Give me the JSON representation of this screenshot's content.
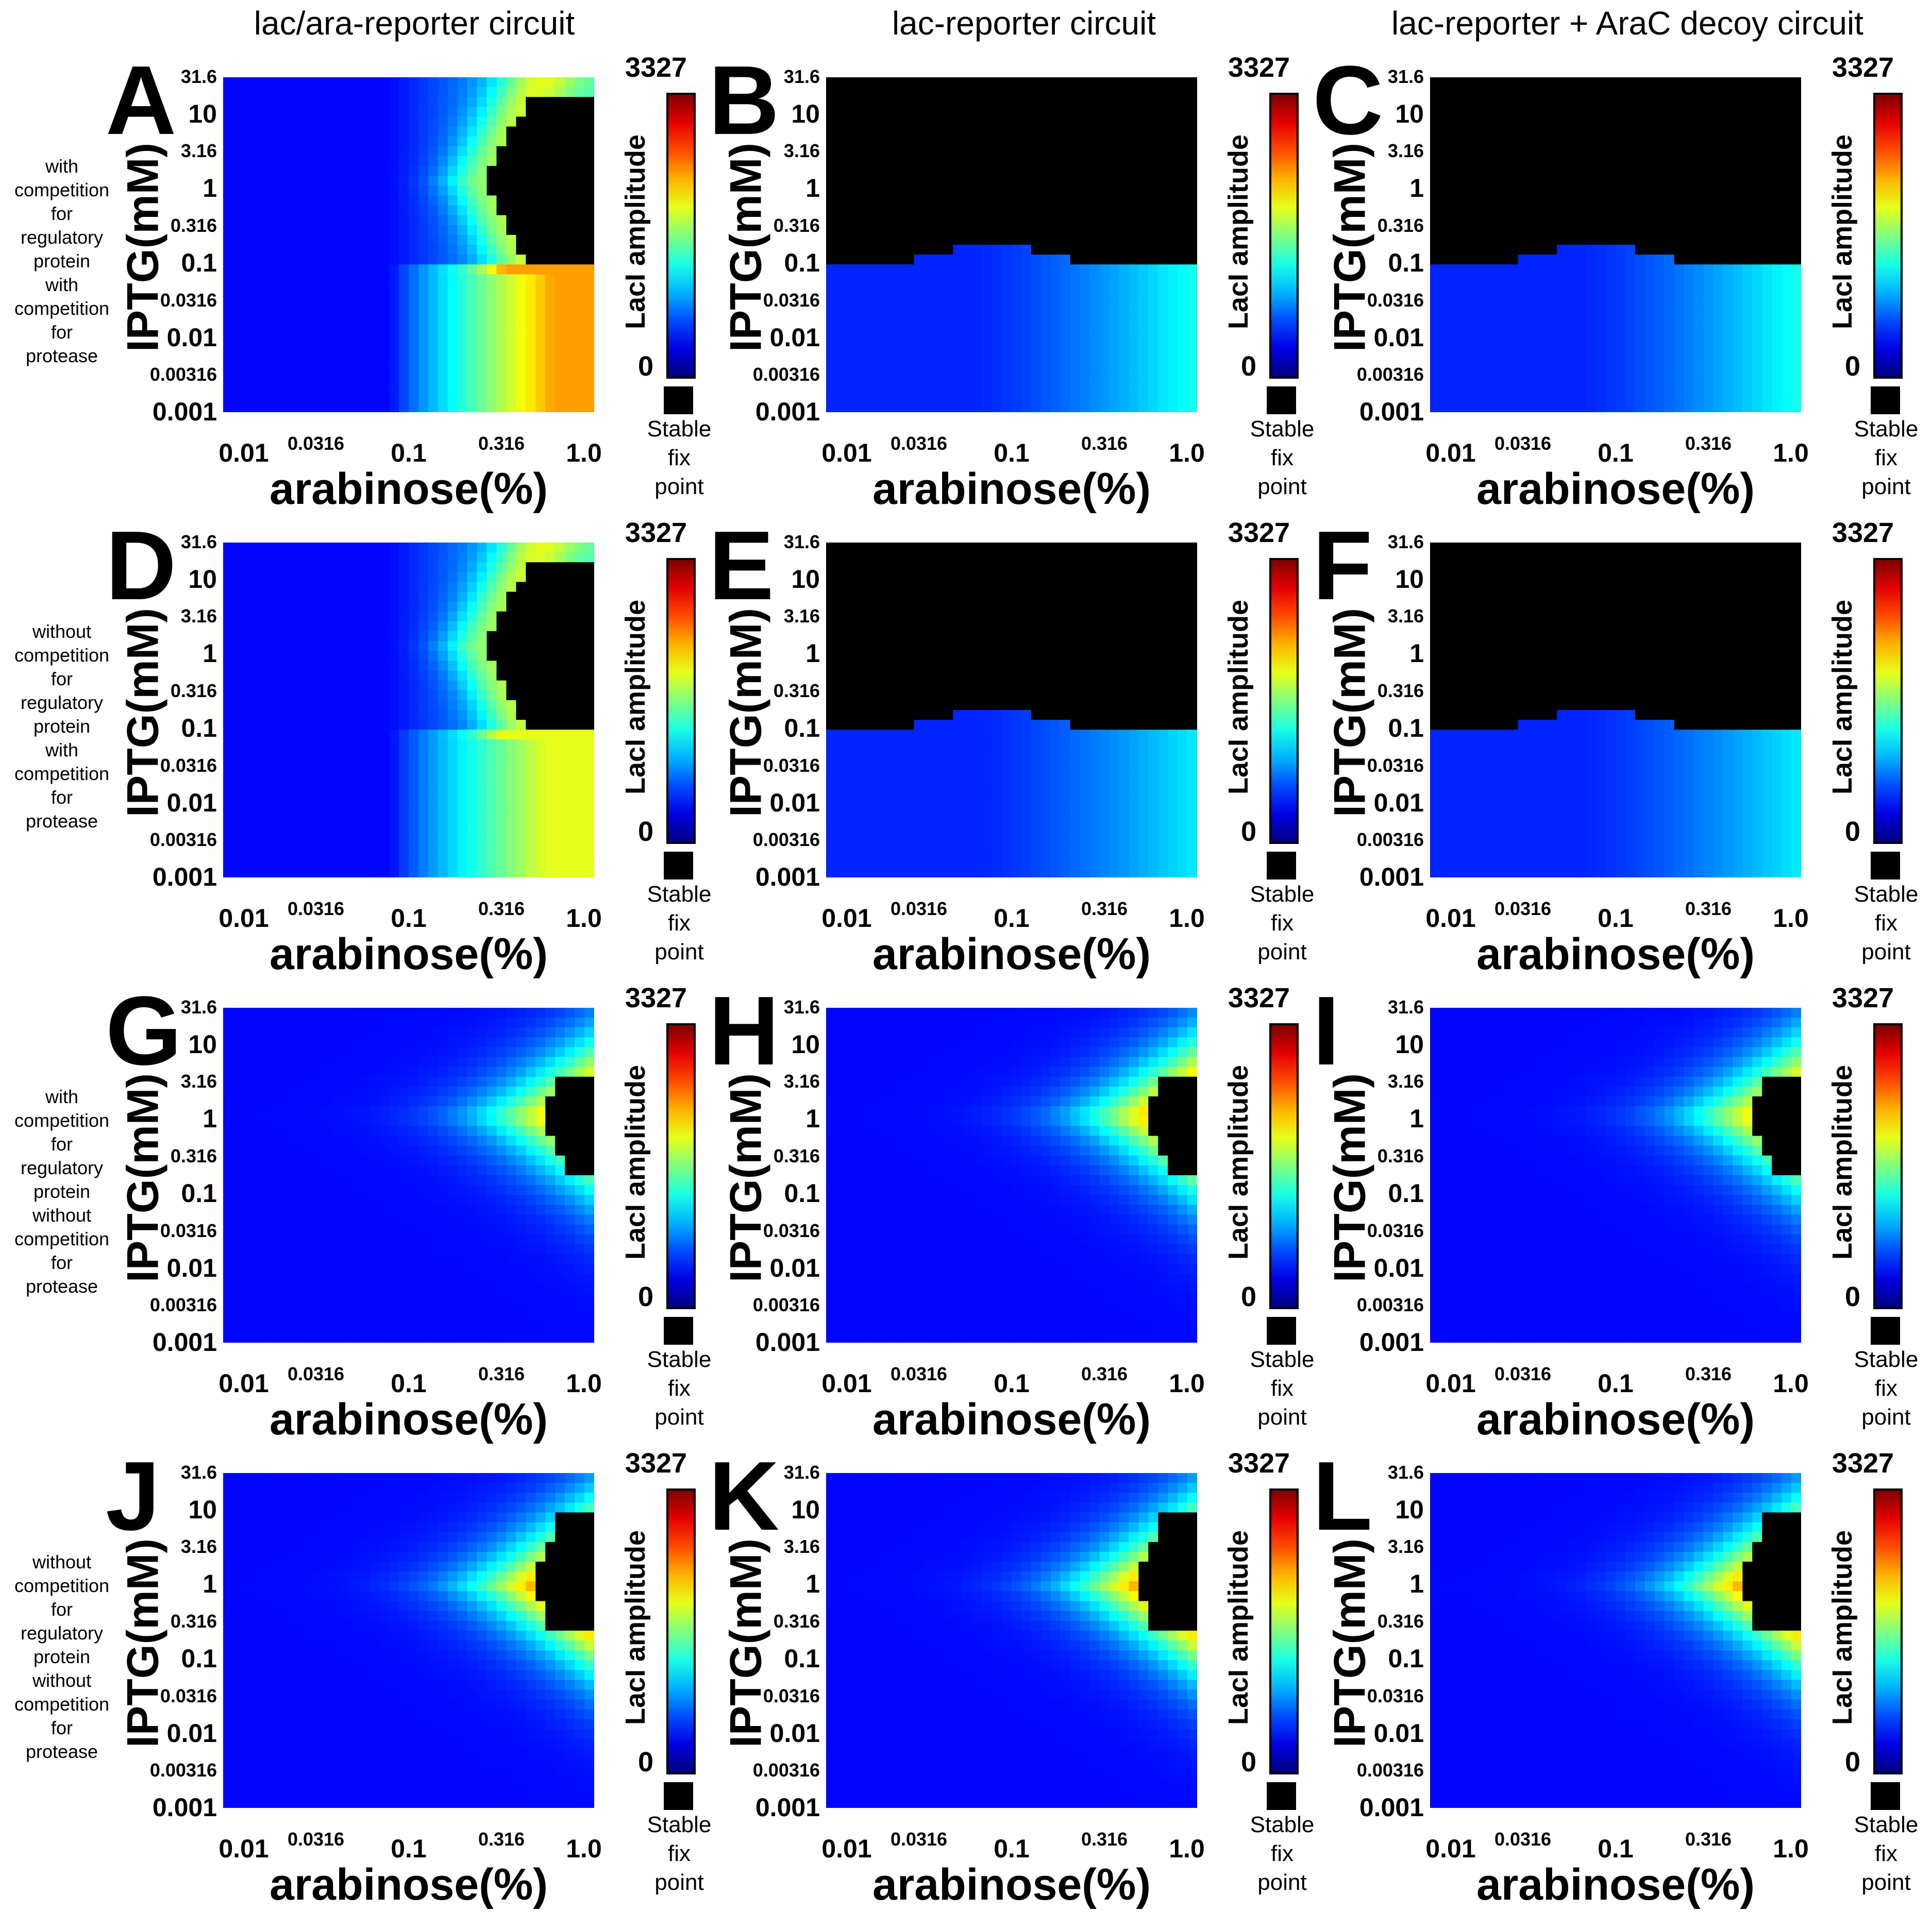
{
  "column_titles": [
    "lac/ara-reporter circuit",
    "lac-reporter circuit",
    "lac-reporter + AraC decoy circuit"
  ],
  "row_labels": [
    [
      "with",
      "competition",
      "for",
      "regulatory",
      "protein",
      "with",
      "competition",
      "for",
      "protease"
    ],
    [
      "without",
      "competition",
      "for",
      "regulatory",
      "protein",
      "with",
      "competition",
      "for",
      "protease"
    ],
    [
      "with",
      "competition",
      "for",
      "regulatory",
      "protein",
      "without",
      "competition",
      "for",
      "protease"
    ],
    [
      "without",
      "competition",
      "for",
      "regulatory",
      "protein",
      "without",
      "competition",
      "for",
      "protease"
    ]
  ],
  "axes": {
    "ylabel": "IPTG(mM)",
    "xlabel": "arabinose(%)",
    "yticks": [
      "31.6",
      "10",
      "3.16",
      "1",
      "0.316",
      "0.1",
      "0.0316",
      "0.01",
      "0.00316",
      "0.001"
    ],
    "xticks": [
      "0.01",
      "0.0316",
      "0.1",
      "0.316",
      "1.0"
    ],
    "x_log10_range": [
      -2,
      0
    ],
    "y_log10_range": [
      -3,
      1.5
    ]
  },
  "colorbar": {
    "max_label": "3327",
    "min_label": "0",
    "label": "LacI amplitude",
    "stable_lines": [
      "Stable",
      "fix",
      "point"
    ],
    "black_color": "#000000"
  },
  "chart_data": [
    {
      "panel": "A",
      "type": "heatmap",
      "variant": "araA",
      "max_intensity": 0.72,
      "title": "lac/ara-reporter circuit",
      "xlabel": "arabinose(%)",
      "ylabel": "IPTG(mM)",
      "zlabel": "LacI amplitude",
      "zlim": [
        0,
        3327
      ]
    },
    {
      "panel": "B",
      "type": "heatmap",
      "variant": "lac",
      "max_intensity": 0.4,
      "title": "lac-reporter circuit",
      "xlabel": "arabinose(%)",
      "ylabel": "IPTG(mM)",
      "zlabel": "LacI amplitude",
      "zlim": [
        0,
        3327
      ]
    },
    {
      "panel": "C",
      "type": "heatmap",
      "variant": "lac",
      "max_intensity": 0.4,
      "title": "lac-reporter + AraC decoy circuit",
      "xlabel": "arabinose(%)",
      "ylabel": "IPTG(mM)",
      "zlabel": "LacI amplitude",
      "zlim": [
        0,
        3327
      ]
    },
    {
      "panel": "D",
      "type": "heatmap",
      "variant": "araA",
      "max_intensity": 0.6,
      "title": "lac/ara-reporter circuit",
      "xlabel": "arabinose(%)",
      "ylabel": "IPTG(mM)",
      "zlabel": "LacI amplitude",
      "zlim": [
        0,
        3327
      ]
    },
    {
      "panel": "E",
      "type": "heatmap",
      "variant": "lac",
      "max_intensity": 0.36,
      "title": "lac-reporter circuit",
      "xlabel": "arabinose(%)",
      "ylabel": "IPTG(mM)",
      "zlabel": "LacI amplitude",
      "zlim": [
        0,
        3327
      ]
    },
    {
      "panel": "F",
      "type": "heatmap",
      "variant": "lac",
      "max_intensity": 0.36,
      "title": "lac-reporter + AraC decoy circuit",
      "xlabel": "arabinose(%)",
      "ylabel": "IPTG(mM)",
      "zlabel": "LacI amplitude",
      "zlim": [
        0,
        3327
      ]
    },
    {
      "panel": "G",
      "type": "heatmap",
      "variant": "arch",
      "max_intensity": 0.82,
      "title": "lac/ara-reporter circuit",
      "xlabel": "arabinose(%)",
      "ylabel": "IPTG(mM)",
      "zlabel": "LacI amplitude",
      "zlim": [
        0,
        3327
      ]
    },
    {
      "panel": "H",
      "type": "heatmap",
      "variant": "arch",
      "max_intensity": 0.88,
      "title": "lac-reporter circuit",
      "xlabel": "arabinose(%)",
      "ylabel": "IPTG(mM)",
      "zlabel": "LacI amplitude",
      "zlim": [
        0,
        3327
      ]
    },
    {
      "panel": "I",
      "type": "heatmap",
      "variant": "arch",
      "max_intensity": 0.82,
      "title": "lac-reporter + AraC decoy circuit",
      "xlabel": "arabinose(%)",
      "ylabel": "IPTG(mM)",
      "zlabel": "LacI amplitude",
      "zlim": [
        0,
        3327
      ]
    },
    {
      "panel": "J",
      "type": "heatmap",
      "variant": "archBig",
      "max_intensity": 0.93,
      "title": "lac/ara-reporter circuit",
      "xlabel": "arabinose(%)",
      "ylabel": "IPTG(mM)",
      "zlabel": "LacI amplitude",
      "zlim": [
        0,
        3327
      ]
    },
    {
      "panel": "K",
      "type": "heatmap",
      "variant": "archBig",
      "max_intensity": 0.93,
      "title": "lac-reporter circuit",
      "xlabel": "arabinose(%)",
      "ylabel": "IPTG(mM)",
      "zlabel": "LacI amplitude",
      "zlim": [
        0,
        3327
      ]
    },
    {
      "panel": "L",
      "type": "heatmap",
      "variant": "archBig",
      "max_intensity": 0.93,
      "title": "lac-reporter + AraC decoy circuit",
      "xlabel": "arabinose(%)",
      "ylabel": "IPTG(mM)",
      "zlabel": "LacI amplitude",
      "zlim": [
        0,
        3327
      ]
    }
  ]
}
